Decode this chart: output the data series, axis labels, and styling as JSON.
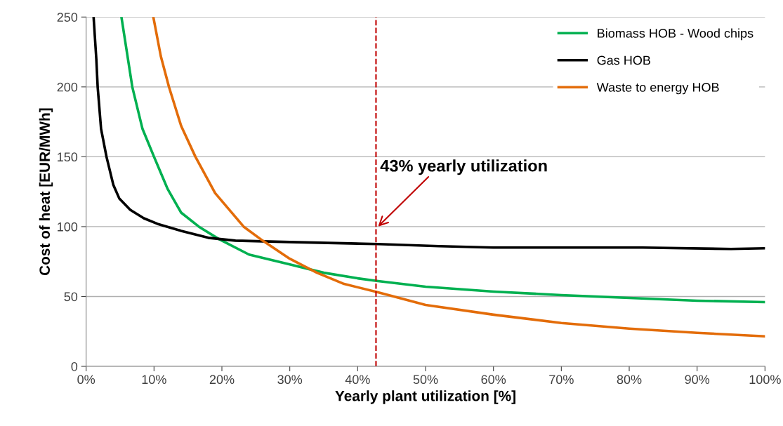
{
  "chart_data": {
    "type": "line",
    "xlabel": "Yearly plant utilization [%]",
    "ylabel": "Cost of heat [EUR/MWh]",
    "xlim": [
      0,
      100
    ],
    "ylim": [
      0,
      250
    ],
    "xticks": [
      {
        "value": 0,
        "label": "0%"
      },
      {
        "value": 10,
        "label": "10%"
      },
      {
        "value": 20,
        "label": "20%"
      },
      {
        "value": 30,
        "label": "30%"
      },
      {
        "value": 40,
        "label": "40%"
      },
      {
        "value": 50,
        "label": "50%"
      },
      {
        "value": 60,
        "label": "60%"
      },
      {
        "value": 70,
        "label": "70%"
      },
      {
        "value": 80,
        "label": "80%"
      },
      {
        "value": 90,
        "label": "90%"
      },
      {
        "value": 100,
        "label": "100%"
      }
    ],
    "yticks": [
      0,
      50,
      100,
      150,
      200,
      250
    ],
    "grid": "y",
    "legend": "top right",
    "marker": "none",
    "line_style": "solid",
    "series": [
      {
        "name": "Biomass HOB - Wood chips",
        "color": "#00b050",
        "x": [
          5.2,
          6.8,
          8.3,
          10,
          12,
          14,
          16.6,
          19.6,
          24,
          30,
          35,
          40,
          43,
          50,
          60,
          70,
          80,
          90,
          100
        ],
        "values": [
          250,
          200,
          170,
          150,
          127,
          110,
          100,
          91,
          80,
          73,
          67,
          63,
          61,
          57,
          53.5,
          51,
          49,
          47,
          46
        ]
      },
      {
        "name": "Gas HOB",
        "color": "#000000",
        "x": [
          1.1,
          1.5,
          1.7,
          2.2,
          3,
          4,
          4.9,
          6.5,
          8.5,
          10.5,
          14,
          18,
          22,
          30,
          43,
          52,
          60,
          75,
          82,
          95,
          100
        ],
        "values": [
          250,
          220,
          200,
          170,
          150,
          130,
          120,
          112,
          106,
          102,
          97,
          92,
          90,
          89,
          87.5,
          86,
          85,
          85,
          85,
          84,
          84.5
        ]
      },
      {
        "name": "Waste to energy HOB",
        "color": "#e36c09",
        "x": [
          9.9,
          11,
          12.2,
          14,
          16.1,
          19,
          23.2,
          26,
          30,
          34,
          38,
          43,
          50,
          60,
          70,
          80,
          90,
          100
        ],
        "values": [
          250,
          222,
          200,
          172,
          150,
          124,
          100,
          90,
          77,
          67,
          59,
          53,
          44,
          37,
          31,
          27,
          24,
          21.5
        ]
      }
    ],
    "ref_lines": [
      {
        "axis": "x",
        "value": 42.7,
        "color": "#c00000",
        "line_style": "dashed"
      }
    ],
    "annotations": [
      {
        "text": "43% yearly utilization",
        "x": 43,
        "y": 100
      }
    ]
  }
}
